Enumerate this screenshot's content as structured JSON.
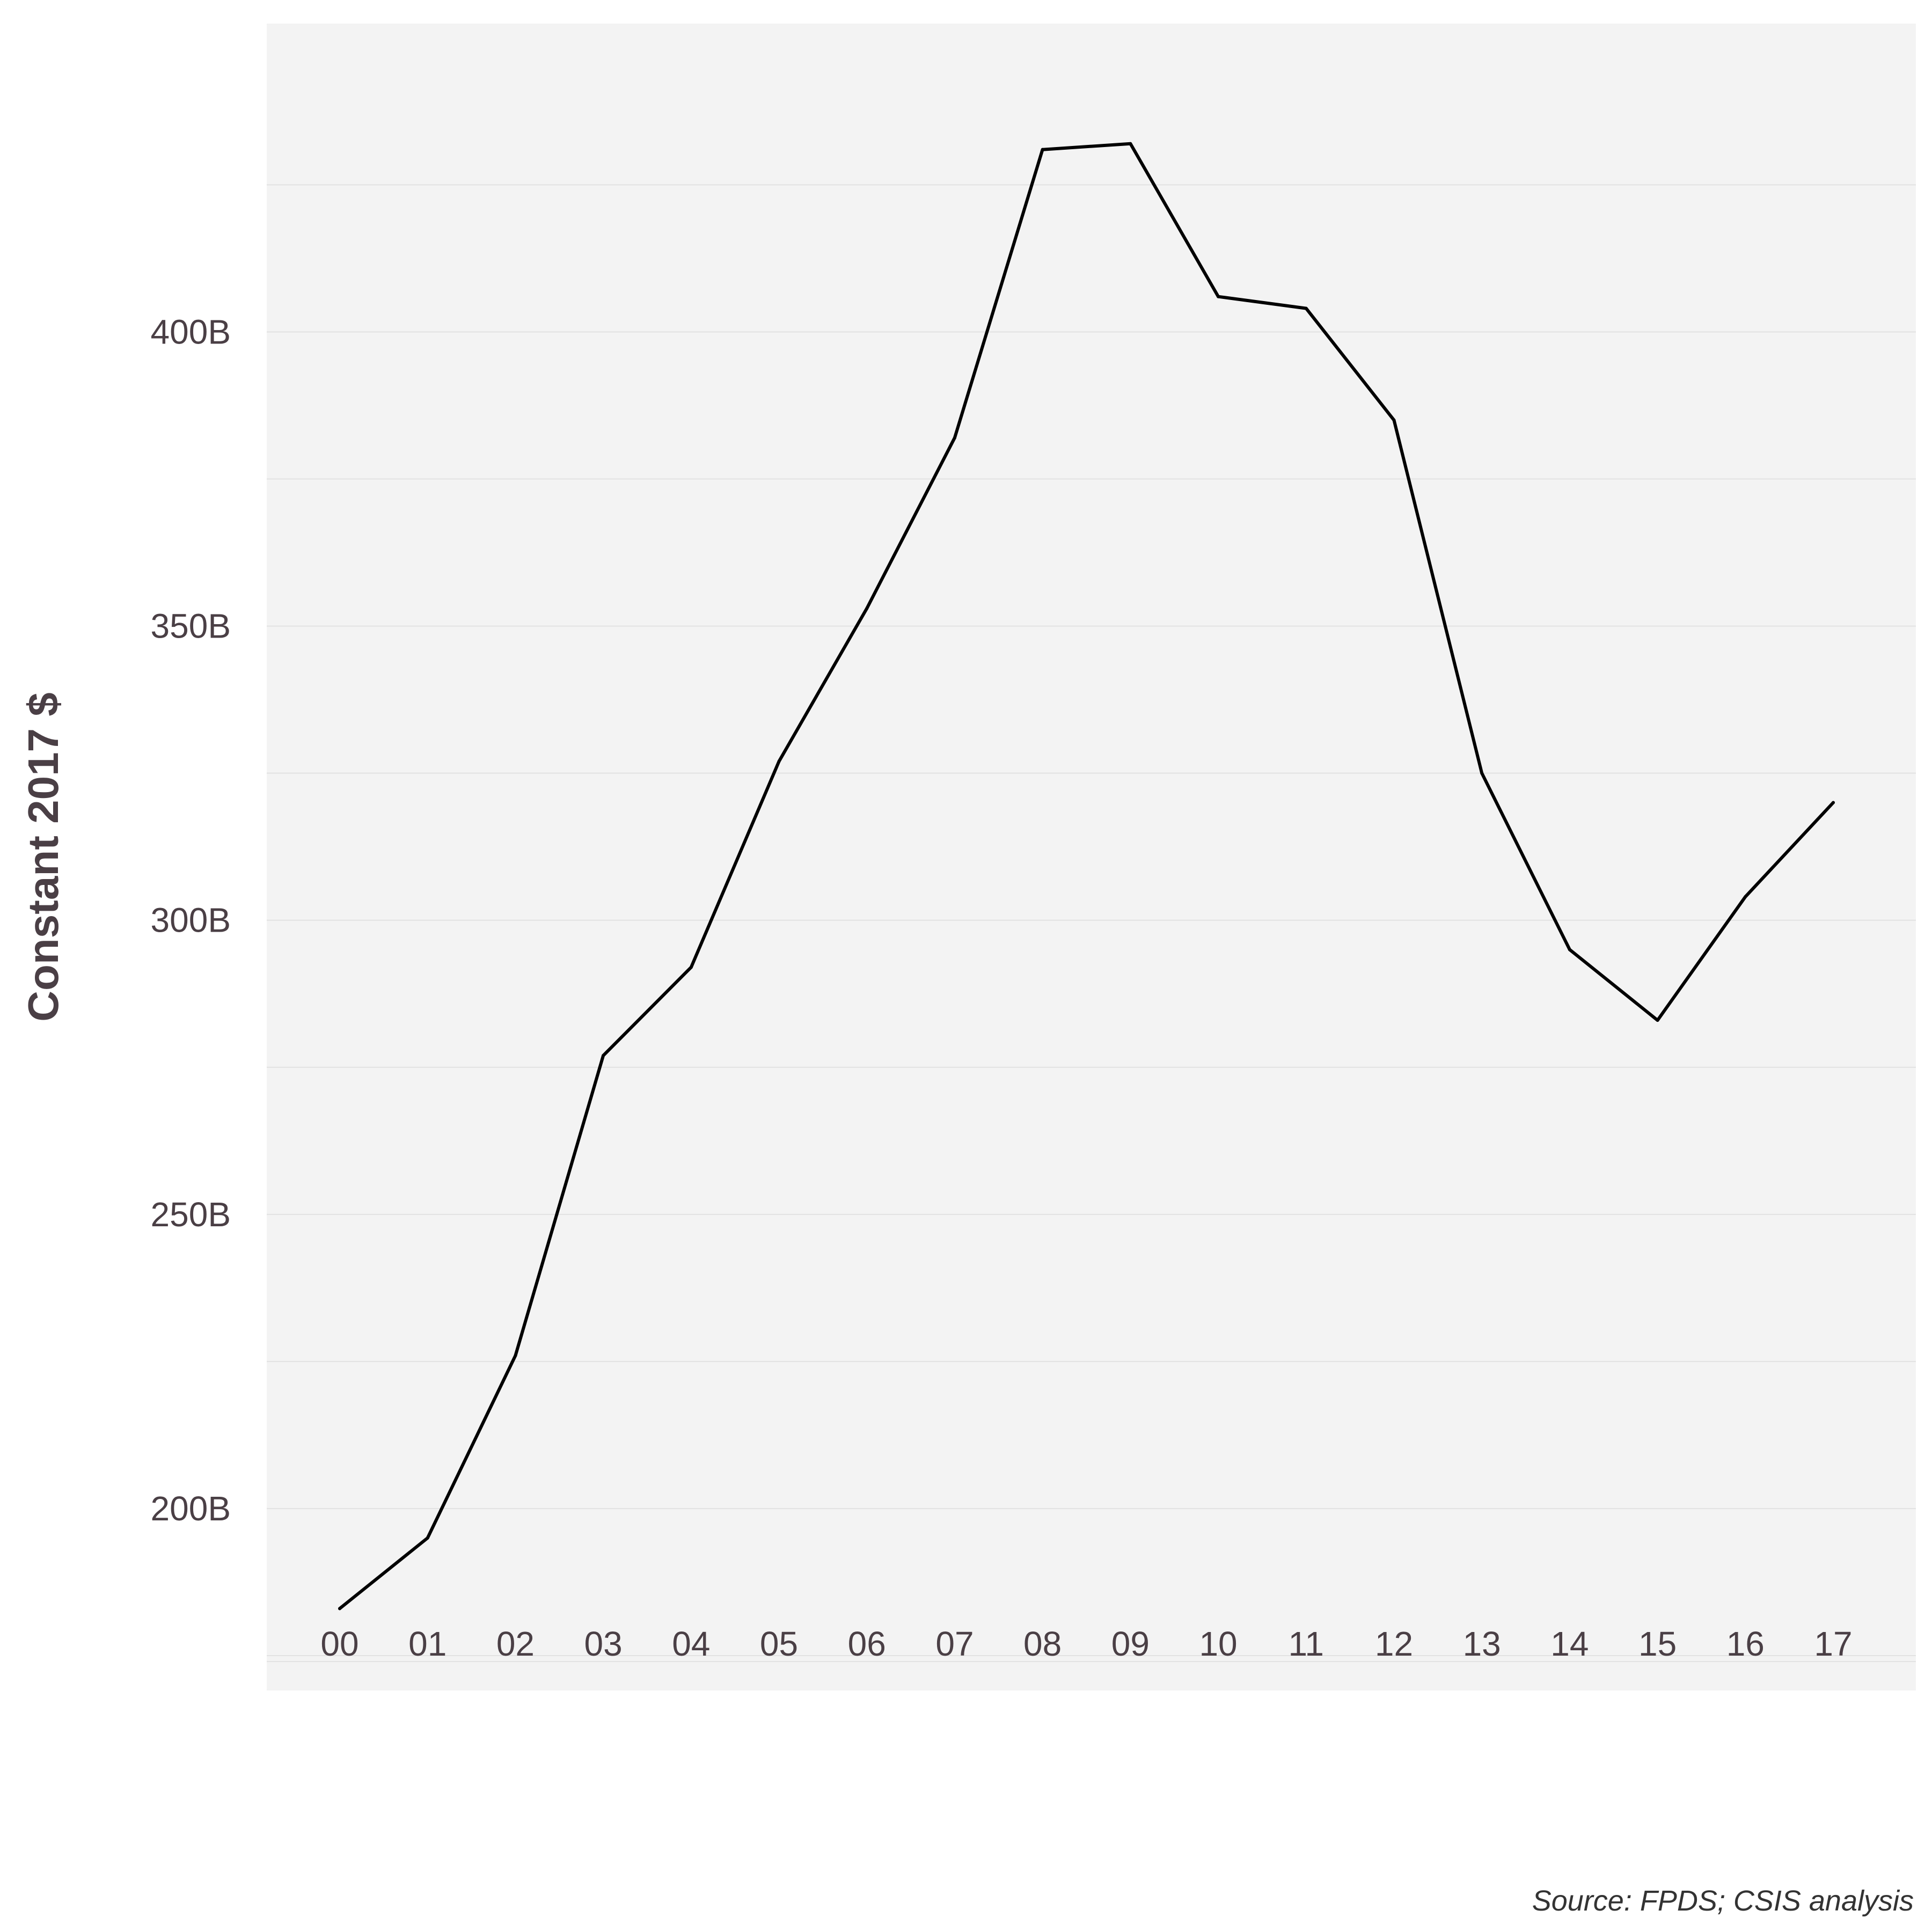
{
  "chart_data": {
    "type": "line",
    "title": "",
    "xlabel": "",
    "ylabel": "Constant 2017 $",
    "caption": "Source: FPDS; CSIS analysis",
    "x": [
      "00",
      "01",
      "02",
      "03",
      "04",
      "05",
      "06",
      "07",
      "08",
      "09",
      "10",
      "11",
      "12",
      "13",
      "14",
      "15",
      "16",
      "17"
    ],
    "series": [
      {
        "values": [
          183,
          195,
          226,
          277,
          292,
          327,
          353,
          382,
          431,
          432,
          406,
          404,
          385,
          325,
          295,
          283,
          304,
          320
        ]
      }
    ],
    "y_unit_suffix": "B",
    "ylim": [
      174,
      440
    ],
    "yticks": [
      200,
      250,
      300,
      350,
      400
    ],
    "grid": true,
    "colors": {
      "panel": "#f3f3f3",
      "grid": "#e2e2e2",
      "line": "#000000",
      "text": "#4a3f45"
    }
  }
}
